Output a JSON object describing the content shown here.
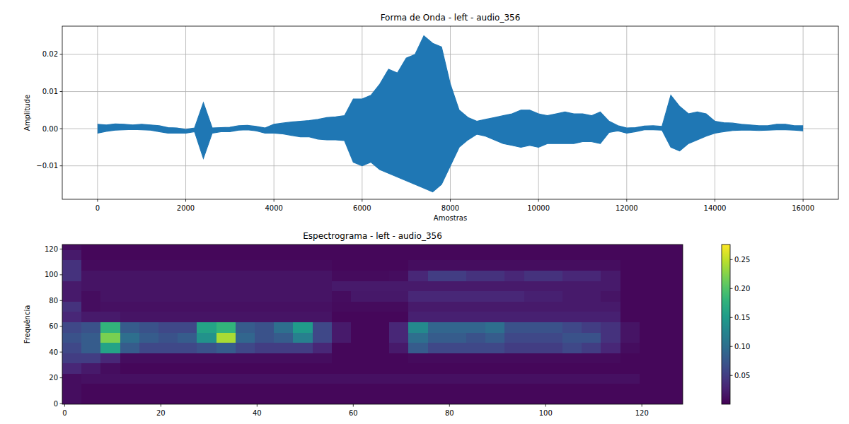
{
  "chart_data": [
    {
      "type": "area",
      "title": "Forma de Onda - left - audio_356",
      "xlabel": "Amostras",
      "ylabel": "Amplitude",
      "grid": true,
      "xlim": [
        -800,
        16800
      ],
      "ylim": [
        -0.019,
        0.0276
      ],
      "xticks": [
        0,
        2000,
        4000,
        6000,
        8000,
        10000,
        12000,
        14000,
        16000
      ],
      "yticks": [
        {
          "value": -0.01,
          "label": "−0.01"
        },
        {
          "value": 0,
          "label": "0.00"
        },
        0.01,
        0.02
      ],
      "x": [
        0,
        200,
        400,
        600,
        800,
        1000,
        1200,
        1400,
        1600,
        1800,
        2000,
        2200,
        2400,
        2600,
        2800,
        3000,
        3200,
        3400,
        3600,
        3800,
        4000,
        4200,
        4400,
        4600,
        4800,
        5000,
        5200,
        5400,
        5600,
        5800,
        6000,
        6200,
        6400,
        6600,
        6800,
        7000,
        7200,
        7400,
        7600,
        7800,
        8000,
        8200,
        8400,
        8600,
        8800,
        9000,
        9200,
        9400,
        9600,
        9800,
        10000,
        10200,
        10400,
        10600,
        10800,
        11000,
        11200,
        11400,
        11600,
        11800,
        12000,
        12200,
        12400,
        12600,
        12800,
        13000,
        13200,
        13400,
        13600,
        13800,
        14000,
        14200,
        14400,
        14600,
        14800,
        15000,
        15200,
        15400,
        15600,
        15800,
        16000
      ],
      "series": [
        {
          "color": "#1f77b4",
          "values": [
            0.0012,
            0.001,
            0.0013,
            0.0012,
            0.001,
            0.0012,
            0.001,
            0.0008,
            0.0003,
            0.0002,
            -0.0002,
            0.0002,
            0.007,
            0.0002,
            0.0003,
            0.0004,
            0.0008,
            0.0009,
            0.0006,
            0.0002,
            0.0012,
            0.0015,
            0.0018,
            0.002,
            0.0022,
            0.0025,
            0.003,
            0.0032,
            0.0035,
            0.008,
            0.008,
            0.009,
            0.012,
            0.016,
            0.015,
            0.019,
            0.02,
            0.025,
            0.023,
            0.022,
            0.012,
            0.005,
            0.003,
            0.002,
            0.0025,
            0.003,
            0.0035,
            0.004,
            0.005,
            0.005,
            0.004,
            0.0035,
            0.004,
            0.0045,
            0.004,
            0.004,
            0.0035,
            0.0045,
            0.002,
            0.0008,
            0.0002,
            0.0003,
            0.0007,
            0.0008,
            0.0006,
            0.009,
            0.006,
            0.004,
            0.0045,
            0.004,
            0.002,
            0.0016,
            0.0015,
            0.0012,
            0.001,
            0.0008,
            0.0008,
            0.0012,
            0.0012,
            0.0008,
            0.0008
          ]
        },
        {
          "color": "#1f77b4",
          "values": [
            -0.0012,
            -0.0007,
            -0.0004,
            -0.0003,
            -0.0002,
            -0.0003,
            -0.0004,
            -0.0008,
            -0.0012,
            -0.0012,
            -0.0012,
            -0.0008,
            -0.008,
            -0.0012,
            -0.0008,
            -0.0008,
            -0.0004,
            -0.0003,
            -0.0006,
            -0.0012,
            -0.0012,
            -0.0014,
            -0.0018,
            -0.0022,
            -0.0022,
            -0.0028,
            -0.003,
            -0.003,
            -0.0032,
            -0.009,
            -0.01,
            -0.009,
            -0.011,
            -0.012,
            -0.013,
            -0.014,
            -0.015,
            -0.016,
            -0.017,
            -0.015,
            -0.01,
            -0.005,
            -0.003,
            -0.0015,
            -0.002,
            -0.003,
            -0.004,
            -0.0045,
            -0.005,
            -0.0045,
            -0.005,
            -0.004,
            -0.004,
            -0.004,
            -0.004,
            -0.0035,
            -0.0035,
            -0.004,
            -0.001,
            -0.0006,
            -0.0012,
            -0.0008,
            -0.0003,
            -0.0003,
            -0.0004,
            -0.005,
            -0.006,
            -0.004,
            -0.003,
            -0.002,
            -0.0012,
            -0.0008,
            -0.0005,
            -0.0004,
            -0.0004,
            -0.0005,
            -0.0004,
            -0.0003,
            -0.0003,
            -0.0004,
            -0.0006
          ]
        }
      ]
    },
    {
      "type": "heatmap",
      "title": "Espectrograma - left - audio_356",
      "ylabel": "Frequência",
      "grid": false,
      "xlim": [
        -0.5,
        128.5
      ],
      "ylim": [
        -0.5,
        123.5
      ],
      "xticks": [
        0,
        20,
        40,
        60,
        80,
        100,
        120
      ],
      "yticks": [
        0,
        20,
        40,
        60,
        80,
        100,
        120
      ],
      "x_edges": [
        -0.5,
        3.5,
        7.5,
        11.5,
        15.5,
        19.5,
        23.5,
        27.5,
        31.5,
        35.5,
        39.5,
        43.5,
        47.5,
        51.5,
        55.5,
        59.5,
        63.5,
        67.5,
        71.5,
        75.5,
        79.5,
        83.5,
        87.5,
        91.5,
        95.5,
        99.5,
        103.5,
        107.5,
        111.5,
        115.5,
        119.5,
        123.5,
        128.5
      ],
      "y_edges": [
        -0.5,
        7.5,
        15.5,
        23.5,
        31.5,
        39.5,
        47.5,
        55.5,
        63.5,
        71.5,
        79.5,
        87.5,
        95.5,
        103.5,
        111.5,
        119.5,
        123.5
      ],
      "cells": [
        [
          0.01,
          0.005,
          0.005,
          0.005,
          0.005,
          0.005,
          0.005,
          0.005,
          0.005,
          0.005,
          0.005,
          0.005,
          0.005,
          0.005,
          0.005,
          0.005,
          0.005,
          0.005,
          0.005,
          0.005,
          0.005,
          0.005,
          0.005,
          0.005,
          0.005,
          0.005,
          0.005,
          0.005,
          0.005,
          0.005,
          0.005,
          0.005
        ],
        [
          0.01,
          0.005,
          0.005,
          0.005,
          0.005,
          0.005,
          0.005,
          0.005,
          0.005,
          0.005,
          0.005,
          0.005,
          0.005,
          0.005,
          0.005,
          0.005,
          0.005,
          0.005,
          0.005,
          0.005,
          0.005,
          0.005,
          0.005,
          0.005,
          0.005,
          0.005,
          0.005,
          0.005,
          0.005,
          0.005,
          0.005,
          0.005
        ],
        [
          0.01,
          0.012,
          0.012,
          0.012,
          0.012,
          0.012,
          0.012,
          0.012,
          0.012,
          0.012,
          0.012,
          0.012,
          0.012,
          0.012,
          0.012,
          0.012,
          0.012,
          0.012,
          0.012,
          0.012,
          0.012,
          0.012,
          0.012,
          0.012,
          0.012,
          0.012,
          0.012,
          0.012,
          0.012,
          0.012,
          0.005,
          0.005
        ],
        [
          0.03,
          0.02,
          0.01,
          0.005,
          0.005,
          0.005,
          0.005,
          0.005,
          0.005,
          0.005,
          0.005,
          0.005,
          0.005,
          0.005,
          0.005,
          0.005,
          0.005,
          0.005,
          0.005,
          0.005,
          0.005,
          0.005,
          0.005,
          0.005,
          0.005,
          0.005,
          0.005,
          0.005,
          0.005,
          0.005,
          0.005,
          0.005
        ],
        [
          0.05,
          0.05,
          0.03,
          0.01,
          0.01,
          0.01,
          0.01,
          0.01,
          0.01,
          0.01,
          0.01,
          0.01,
          0.01,
          0.01,
          0.005,
          0.005,
          0.005,
          0.005,
          0.008,
          0.008,
          0.008,
          0.008,
          0.008,
          0.008,
          0.008,
          0.008,
          0.008,
          0.008,
          0.008,
          0.005,
          0.005,
          0.005
        ],
        [
          0.06,
          0.08,
          0.16,
          0.08,
          0.06,
          0.06,
          0.06,
          0.07,
          0.08,
          0.06,
          0.05,
          0.05,
          0.05,
          0.03,
          0.005,
          0.005,
          0.005,
          0.02,
          0.08,
          0.06,
          0.06,
          0.06,
          0.06,
          0.05,
          0.05,
          0.05,
          0.06,
          0.05,
          0.03,
          0.01,
          0.005,
          0.005
        ],
        [
          0.07,
          0.08,
          0.22,
          0.1,
          0.08,
          0.07,
          0.08,
          0.14,
          0.24,
          0.09,
          0.07,
          0.08,
          0.12,
          0.06,
          0.02,
          0.005,
          0.005,
          0.03,
          0.1,
          0.08,
          0.08,
          0.07,
          0.08,
          0.06,
          0.06,
          0.06,
          0.07,
          0.07,
          0.04,
          0.015,
          0.005,
          0.005
        ],
        [
          0.06,
          0.07,
          0.18,
          0.08,
          0.07,
          0.06,
          0.06,
          0.16,
          0.18,
          0.08,
          0.07,
          0.1,
          0.15,
          0.06,
          0.02,
          0.005,
          0.005,
          0.03,
          0.13,
          0.09,
          0.09,
          0.09,
          0.1,
          0.07,
          0.07,
          0.07,
          0.06,
          0.05,
          0.04,
          0.015,
          0.005,
          0.005
        ],
        [
          0.03,
          0.02,
          0.02,
          0.015,
          0.015,
          0.015,
          0.015,
          0.015,
          0.015,
          0.015,
          0.015,
          0.015,
          0.015,
          0.015,
          0.005,
          0.005,
          0.005,
          0.005,
          0.025,
          0.025,
          0.025,
          0.025,
          0.025,
          0.025,
          0.025,
          0.025,
          0.025,
          0.025,
          0.025,
          0.005,
          0.005,
          0.005
        ],
        [
          0.04,
          0.01,
          0.012,
          0.012,
          0.012,
          0.012,
          0.012,
          0.012,
          0.012,
          0.012,
          0.012,
          0.012,
          0.012,
          0.012,
          0.008,
          0.008,
          0.008,
          0.008,
          0.02,
          0.02,
          0.02,
          0.02,
          0.02,
          0.02,
          0.02,
          0.02,
          0.02,
          0.02,
          0.02,
          0.005,
          0.005,
          0.005
        ],
        [
          0.02,
          0.01,
          0.015,
          0.015,
          0.015,
          0.015,
          0.015,
          0.015,
          0.015,
          0.015,
          0.015,
          0.015,
          0.015,
          0.015,
          0.01,
          0.018,
          0.018,
          0.018,
          0.03,
          0.03,
          0.03,
          0.03,
          0.03,
          0.03,
          0.025,
          0.025,
          0.02,
          0.02,
          0.015,
          0.005,
          0.005,
          0.005
        ],
        [
          0.02,
          0.015,
          0.015,
          0.015,
          0.015,
          0.015,
          0.015,
          0.015,
          0.015,
          0.015,
          0.015,
          0.015,
          0.015,
          0.015,
          0.02,
          0.02,
          0.02,
          0.02,
          0.02,
          0.02,
          0.02,
          0.02,
          0.02,
          0.02,
          0.02,
          0.02,
          0.02,
          0.02,
          0.02,
          0.005,
          0.005,
          0.005
        ],
        [
          0.04,
          0.015,
          0.015,
          0.015,
          0.015,
          0.015,
          0.015,
          0.015,
          0.015,
          0.015,
          0.015,
          0.015,
          0.015,
          0.015,
          0.008,
          0.008,
          0.008,
          0.01,
          0.03,
          0.05,
          0.05,
          0.04,
          0.04,
          0.03,
          0.04,
          0.04,
          0.03,
          0.03,
          0.02,
          0.005,
          0.005,
          0.005
        ],
        [
          0.04,
          0.008,
          0.008,
          0.008,
          0.008,
          0.008,
          0.008,
          0.008,
          0.008,
          0.008,
          0.008,
          0.008,
          0.008,
          0.008,
          0.005,
          0.005,
          0.005,
          0.005,
          0.01,
          0.01,
          0.01,
          0.01,
          0.01,
          0.01,
          0.01,
          0.01,
          0.01,
          0.01,
          0.01,
          0.005,
          0.005,
          0.005
        ],
        [
          0.02,
          0.005,
          0.005,
          0.005,
          0.005,
          0.005,
          0.005,
          0.005,
          0.005,
          0.005,
          0.005,
          0.005,
          0.005,
          0.005,
          0.005,
          0.005,
          0.005,
          0.005,
          0.005,
          0.005,
          0.005,
          0.005,
          0.005,
          0.005,
          0.005,
          0.005,
          0.005,
          0.005,
          0.005,
          0.005,
          0.005,
          0.005
        ],
        [
          0.01,
          0.005,
          0.005,
          0.005,
          0.005,
          0.005,
          0.005,
          0.005,
          0.005,
          0.005,
          0.005,
          0.005,
          0.005,
          0.005,
          0.005,
          0.005,
          0.005,
          0.005,
          0.005,
          0.005,
          0.005,
          0.005,
          0.005,
          0.005,
          0.005,
          0.005,
          0.005,
          0.005,
          0.005,
          0.005,
          0.005,
          0.005
        ]
      ],
      "colorbar_lim": [
        0.0003,
        0.276
      ],
      "colorbar_ticks": [
        0.05,
        {
          "value": 0.1,
          "label": "0.10"
        },
        0.15,
        {
          "value": 0.2,
          "label": "0.20"
        },
        0.25
      ]
    }
  ]
}
